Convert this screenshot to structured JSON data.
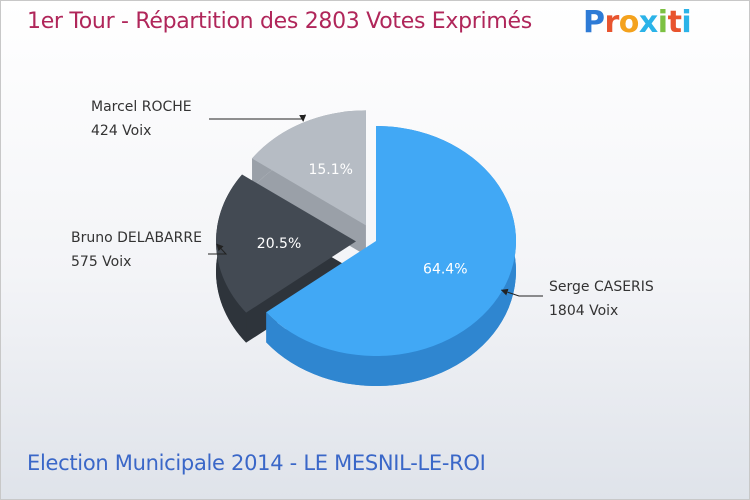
{
  "title": "1er Tour - Répartition des 2803 Votes Exprimés",
  "footer": "Election Municipale 2014 - LE MESNIL-LE-ROI",
  "logo": {
    "letters": [
      "P",
      "r",
      "o",
      "x",
      "i",
      "t",
      "i"
    ],
    "colors": [
      "#2e7bd6",
      "#e8542e",
      "#f4a21d",
      "#2bb3e8",
      "#7cc142",
      "#e8542e",
      "#2bb3e8"
    ]
  },
  "chart_data": {
    "type": "pie",
    "title": "1er Tour - Répartition des 2803 Votes Exprimés",
    "total_votes": 2803,
    "series": [
      {
        "name": "Serge CASERIS",
        "votes_label": "1804 Voix",
        "value": 1804,
        "percent": 64.4,
        "percent_label": "64.4%",
        "color": "#41a8f5",
        "side_color": "#2f86d0"
      },
      {
        "name": "Bruno DELABARRE",
        "votes_label": "575 Voix",
        "value": 575,
        "percent": 20.5,
        "percent_label": "20.5%",
        "color": "#434a53",
        "side_color": "#2e343b"
      },
      {
        "name": "Marcel ROCHE",
        "votes_label": "424 Voix",
        "value": 424,
        "percent": 15.1,
        "percent_label": "15.1%",
        "color": "#b6bcc4",
        "side_color": "#9aa0a8"
      }
    ]
  }
}
